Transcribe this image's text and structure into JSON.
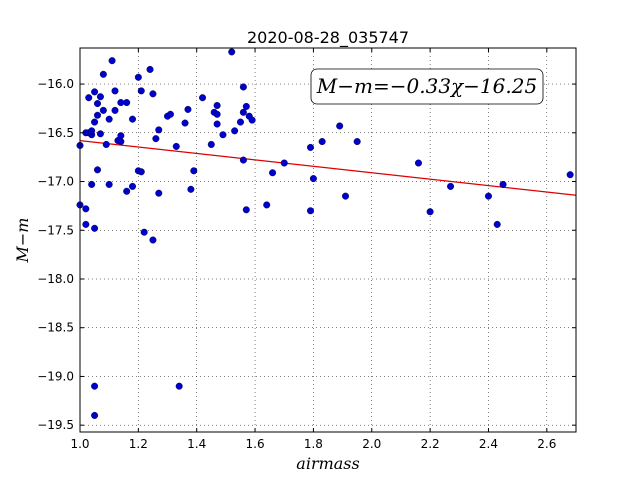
{
  "chart_data": {
    "type": "scatter",
    "title": "2020-08-28_035747",
    "xlabel": "airmass",
    "ylabel": "M−m",
    "annotation": "M−m=−0.33χ−16.25",
    "xlim": [
      1.0,
      2.7
    ],
    "ylim": [
      -19.57,
      -15.63
    ],
    "y_inverted": true,
    "grid": true,
    "colors": {
      "points": "#0000cc",
      "fit": "#dd0000"
    },
    "x_ticks": [
      1.0,
      1.2,
      1.4,
      1.6,
      1.8,
      2.0,
      2.2,
      2.4,
      2.6
    ],
    "x_tick_labels": [
      "1.0",
      "1.2",
      "1.4",
      "1.6",
      "1.8",
      "2.0",
      "2.2",
      "2.4",
      "2.6"
    ],
    "y_ticks": [
      -16.0,
      -16.5,
      -17.0,
      -17.5,
      -18.0,
      -18.5,
      -19.0,
      -19.5
    ],
    "y_tick_labels": [
      "−16.0",
      "−16.5",
      "−17.0",
      "−17.5",
      "−18.0",
      "−18.5",
      "−19.0",
      "−19.5"
    ],
    "fit": {
      "slope": -0.33,
      "intercept": -16.25
    },
    "points": [
      [
        1.0,
        -16.63
      ],
      [
        1.0,
        -17.24
      ],
      [
        1.02,
        -16.5
      ],
      [
        1.02,
        -17.28
      ],
      [
        1.02,
        -17.44
      ],
      [
        1.03,
        -16.14
      ],
      [
        1.03,
        -16.5
      ],
      [
        1.04,
        -16.52
      ],
      [
        1.04,
        -16.48
      ],
      [
        1.04,
        -17.03
      ],
      [
        1.05,
        -16.39
      ],
      [
        1.05,
        -16.08
      ],
      [
        1.05,
        -19.1
      ],
      [
        1.05,
        -19.4
      ],
      [
        1.05,
        -17.48
      ],
      [
        1.06,
        -16.2
      ],
      [
        1.06,
        -16.88
      ],
      [
        1.06,
        -16.32
      ],
      [
        1.07,
        -16.13
      ],
      [
        1.07,
        -16.51
      ],
      [
        1.08,
        -15.9
      ],
      [
        1.08,
        -16.27
      ],
      [
        1.09,
        -16.62
      ],
      [
        1.1,
        -16.36
      ],
      [
        1.1,
        -17.03
      ],
      [
        1.11,
        -15.76
      ],
      [
        1.12,
        -16.07
      ],
      [
        1.12,
        -16.27
      ],
      [
        1.13,
        -16.58
      ],
      [
        1.14,
        -16.53
      ],
      [
        1.14,
        -16.59
      ],
      [
        1.14,
        -16.19
      ],
      [
        1.16,
        -16.19
      ],
      [
        1.16,
        -17.1
      ],
      [
        1.18,
        -16.36
      ],
      [
        1.18,
        -17.05
      ],
      [
        1.2,
        -16.89
      ],
      [
        1.2,
        -15.93
      ],
      [
        1.21,
        -16.07
      ],
      [
        1.21,
        -16.9
      ],
      [
        1.22,
        -17.52
      ],
      [
        1.24,
        -15.85
      ],
      [
        1.25,
        -16.1
      ],
      [
        1.25,
        -17.6
      ],
      [
        1.26,
        -16.56
      ],
      [
        1.27,
        -16.47
      ],
      [
        1.27,
        -17.12
      ],
      [
        1.3,
        -16.33
      ],
      [
        1.31,
        -16.31
      ],
      [
        1.33,
        -16.64
      ],
      [
        1.34,
        -19.1
      ],
      [
        1.36,
        -16.4
      ],
      [
        1.37,
        -16.26
      ],
      [
        1.38,
        -17.08
      ],
      [
        1.39,
        -16.89
      ],
      [
        1.42,
        -16.14
      ],
      [
        1.45,
        -16.62
      ],
      [
        1.46,
        -16.29
      ],
      [
        1.47,
        -16.31
      ],
      [
        1.47,
        -16.22
      ],
      [
        1.47,
        -16.41
      ],
      [
        1.49,
        -16.52
      ],
      [
        1.52,
        -15.67
      ],
      [
        1.53,
        -16.48
      ],
      [
        1.55,
        -16.39
      ],
      [
        1.56,
        -16.29
      ],
      [
        1.56,
        -16.78
      ],
      [
        1.56,
        -16.03
      ],
      [
        1.57,
        -16.23
      ],
      [
        1.57,
        -17.29
      ],
      [
        1.58,
        -16.33
      ],
      [
        1.59,
        -16.37
      ],
      [
        1.64,
        -17.24
      ],
      [
        1.66,
        -16.91
      ],
      [
        1.7,
        -16.81
      ],
      [
        1.79,
        -16.65
      ],
      [
        1.79,
        -17.3
      ],
      [
        1.8,
        -16.97
      ],
      [
        1.83,
        -16.59
      ],
      [
        1.89,
        -16.43
      ],
      [
        1.91,
        -17.15
      ],
      [
        1.95,
        -16.59
      ],
      [
        2.16,
        -16.81
      ],
      [
        2.2,
        -17.31
      ],
      [
        2.27,
        -17.05
      ],
      [
        2.4,
        -17.15
      ],
      [
        2.43,
        -17.44
      ],
      [
        2.45,
        -17.03
      ],
      [
        2.68,
        -16.93
      ]
    ]
  }
}
